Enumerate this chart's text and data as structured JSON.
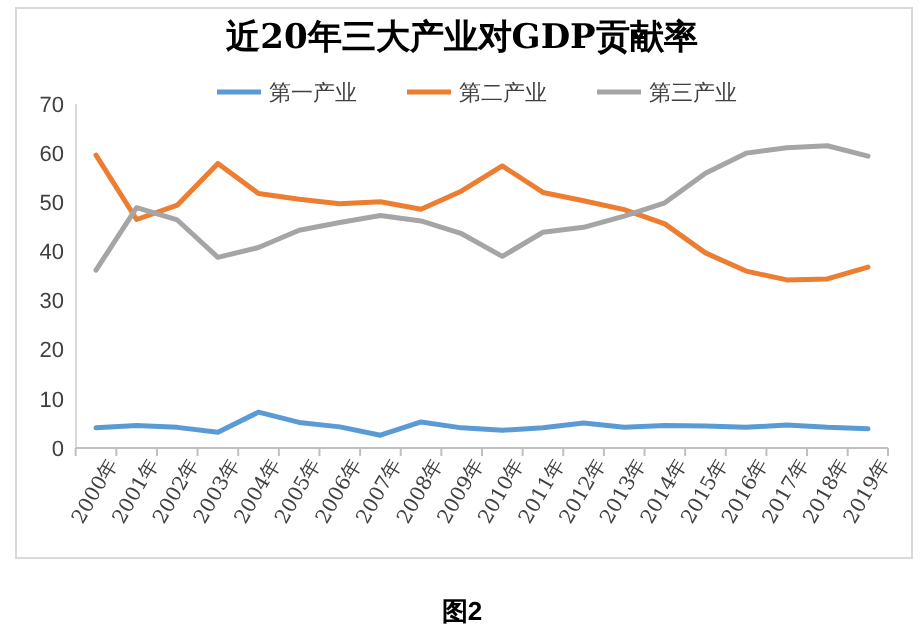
{
  "chart_data": {
    "type": "line",
    "title": "近20年三大产业对GDP贡献率",
    "annotations": [
      "图2"
    ],
    "categories": [
      "2000年",
      "2001年",
      "2002年",
      "2003年",
      "2004年",
      "2005年",
      "2006年",
      "2007年",
      "2008年",
      "2009年",
      "2010年",
      "2011年",
      "2012年",
      "2013年",
      "2014年",
      "2015年",
      "2016年",
      "2017年",
      "2018年",
      "2019年"
    ],
    "series": [
      {
        "name": "第一产业",
        "color": "#5b9bd5",
        "values": [
          4.1,
          4.6,
          4.2,
          3.2,
          7.3,
          5.2,
          4.3,
          2.6,
          5.3,
          4.1,
          3.6,
          4.1,
          5.1,
          4.2,
          4.6,
          4.5,
          4.2,
          4.7,
          4.2,
          3.9
        ]
      },
      {
        "name": "第二产业",
        "color": "#ed7d31",
        "values": [
          59.6,
          46.5,
          49.4,
          57.9,
          51.8,
          50.6,
          49.7,
          50.1,
          48.6,
          52.3,
          57.4,
          52.0,
          50.3,
          48.5,
          45.6,
          39.7,
          36.0,
          34.2,
          34.4,
          36.8
        ]
      },
      {
        "name": "第三产业",
        "color": "#a5a5a5",
        "values": [
          36.2,
          48.9,
          46.4,
          38.8,
          40.8,
          44.3,
          45.9,
          47.3,
          46.2,
          43.6,
          39.0,
          43.9,
          44.9,
          47.2,
          49.9,
          55.9,
          60.0,
          61.1,
          61.5,
          59.4
        ]
      }
    ],
    "ylim": [
      0,
      70
    ],
    "yticks": [
      0,
      10,
      20,
      30,
      40,
      50,
      60,
      70
    ],
    "grid": false,
    "legend": "top",
    "line_style": "solid"
  }
}
